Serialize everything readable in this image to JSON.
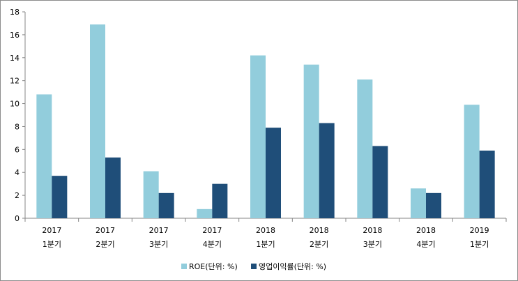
{
  "chart_data": {
    "type": "bar",
    "title": "",
    "xlabel": "",
    "ylabel": "",
    "ylim": [
      0,
      18
    ],
    "yticks": [
      0,
      2,
      4,
      6,
      8,
      10,
      12,
      14,
      16,
      18
    ],
    "categories": [
      [
        "2017",
        "1분기"
      ],
      [
        "2017",
        "2분기"
      ],
      [
        "2017",
        "3분기"
      ],
      [
        "2017",
        "4분기"
      ],
      [
        "2018",
        "1분기"
      ],
      [
        "2018",
        "2분기"
      ],
      [
        "2018",
        "3분기"
      ],
      [
        "2018",
        "4분기"
      ],
      [
        "2019",
        "1분기"
      ]
    ],
    "series": [
      {
        "name": "ROE(단위: %)",
        "color": "#92cddc",
        "values": [
          10.8,
          16.9,
          4.1,
          0.8,
          14.2,
          13.4,
          12.1,
          2.6,
          9.9
        ]
      },
      {
        "name": "영업이익률(단위: %)",
        "color": "#1f4e79",
        "values": [
          3.7,
          5.3,
          2.2,
          3.0,
          7.9,
          8.3,
          6.3,
          2.2,
          5.9
        ]
      }
    ],
    "grid": false,
    "legend_position": "bottom"
  }
}
